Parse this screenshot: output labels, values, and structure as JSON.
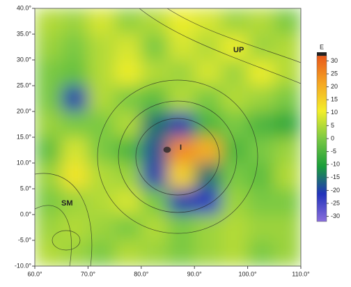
{
  "chart_data": {
    "type": "heatmap",
    "x": [
      62.5,
      67.5,
      72.5,
      77.5,
      82.5,
      87.5,
      92.5,
      97.5,
      102.5,
      107.5
    ],
    "y": [
      37.5,
      32.5,
      27.5,
      22.5,
      17.5,
      12.5,
      7.5,
      2.5,
      -2.5,
      -7.5
    ],
    "z": [
      [
        5,
        3,
        8,
        2,
        5,
        10,
        8,
        3,
        5,
        0
      ],
      [
        3,
        0,
        5,
        8,
        0,
        8,
        5,
        10,
        3,
        5
      ],
      [
        0,
        -2,
        5,
        10,
        5,
        3,
        8,
        3,
        10,
        5
      ],
      [
        0,
        -20,
        5,
        0,
        -3,
        5,
        0,
        5,
        3,
        0
      ],
      [
        3,
        0,
        0,
        5,
        -15,
        -20,
        -5,
        0,
        -5,
        -8
      ],
      [
        -3,
        8,
        0,
        -5,
        -18,
        25,
        20,
        -5,
        0,
        3
      ],
      [
        3,
        12,
        5,
        3,
        -20,
        15,
        -15,
        0,
        -3,
        5
      ],
      [
        0,
        3,
        5,
        8,
        0,
        -20,
        -22,
        3,
        0,
        0
      ],
      [
        3,
        5,
        3,
        0,
        5,
        0,
        3,
        5,
        3,
        3
      ],
      [
        5,
        3,
        0,
        5,
        3,
        0,
        3,
        5,
        0,
        3
      ]
    ],
    "xlim": [
      60,
      110
    ],
    "ylim": [
      -10,
      40
    ],
    "xticks": [
      {
        "value": 60,
        "label": "60.0°"
      },
      {
        "value": 70,
        "label": "70.0°"
      },
      {
        "value": 80,
        "label": "80.0°"
      },
      {
        "value": 90,
        "label": "90.0°"
      },
      {
        "value": 100,
        "label": "100.0°"
      },
      {
        "value": 110,
        "label": "110.0°"
      }
    ],
    "yticks": [
      {
        "value": -10,
        "label": "-10.0°"
      },
      {
        "value": -5,
        "label": "-5.0°"
      },
      {
        "value": 0,
        "label": "0.0°"
      },
      {
        "value": 5,
        "label": "5.0°"
      },
      {
        "value": 10,
        "label": "10.0°"
      },
      {
        "value": 15,
        "label": "15.0°"
      },
      {
        "value": 20,
        "label": "20.0°"
      },
      {
        "value": 25,
        "label": "25.0°"
      },
      {
        "value": 30,
        "label": "30.0°"
      },
      {
        "value": 35,
        "label": "35.0°"
      },
      {
        "value": 40,
        "label": "40.0°"
      }
    ],
    "colorbar": {
      "title": "E",
      "lim": [
        -32,
        32
      ],
      "ticks": [
        30,
        25,
        20,
        15,
        10,
        5,
        0,
        -5,
        -10,
        -15,
        -20,
        -25,
        -30
      ],
      "colormap": [
        "#8a6fdc",
        "#2233bb",
        "#1a9e3a",
        "#7ac943",
        "#f3ee2a",
        "#f5a623",
        "#e8581a"
      ]
    },
    "annotations": [
      "UP",
      "I",
      "SM"
    ]
  }
}
